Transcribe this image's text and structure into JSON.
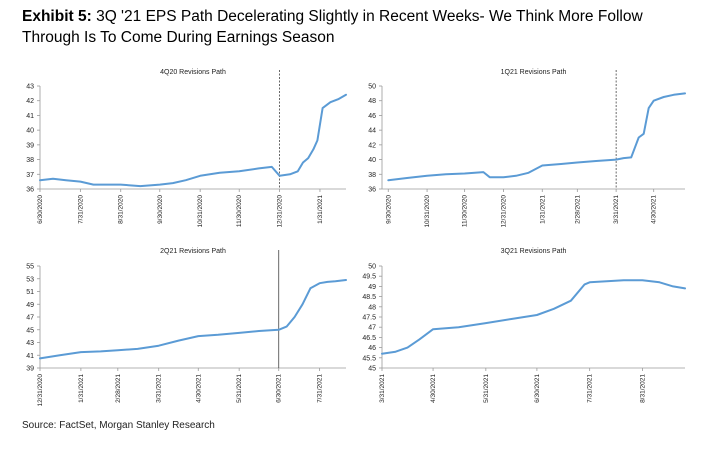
{
  "header": {
    "exhibit_label": "Exhibit 5:",
    "title": "3Q '21 EPS Path Decelerating Slightly in Recent Weeks- We Think More Follow Through Is To Come During Earnings Season"
  },
  "source": "Source: FactSet, Morgan Stanley Research",
  "colors": {
    "series": "#5b9bd5",
    "axis": "#9a9a9a"
  },
  "chart_data": [
    {
      "type": "line",
      "title": "4Q20 Revisions Path",
      "xlabel": "",
      "ylabel": "",
      "ylim": [
        36,
        43
      ],
      "yticks": [
        "36",
        "37",
        "38",
        "39",
        "40",
        "41",
        "42",
        "43"
      ],
      "xticks": [
        "6/30/2020",
        "7/31/2020",
        "8/31/2020",
        "9/30/2020",
        "10/31/2020",
        "11/30/2020",
        "12/31/2020",
        "1/31/2021"
      ],
      "xlim": [
        "2020-06-30",
        "2021-02-20"
      ],
      "vline": "2020-12-31",
      "series": [
        {
          "x": [
            "2020-06-30",
            "2020-07-10",
            "2020-07-20",
            "2020-07-31",
            "2020-08-10",
            "2020-08-31",
            "2020-09-15",
            "2020-09-30",
            "2020-10-10",
            "2020-10-20",
            "2020-10-31",
            "2020-11-15",
            "2020-11-30",
            "2020-12-15",
            "2020-12-25",
            "2020-12-31",
            "2021-01-08",
            "2021-01-14",
            "2021-01-18",
            "2021-01-22",
            "2021-01-26",
            "2021-01-29",
            "2021-02-02",
            "2021-02-08",
            "2021-02-14",
            "2021-02-20"
          ],
          "y": [
            36.6,
            36.7,
            36.6,
            36.5,
            36.3,
            36.3,
            36.2,
            36.3,
            36.4,
            36.6,
            36.9,
            37.1,
            37.2,
            37.4,
            37.5,
            36.9,
            37.0,
            37.2,
            37.8,
            38.1,
            38.7,
            39.3,
            41.5,
            41.9,
            42.1,
            42.4
          ]
        }
      ]
    },
    {
      "type": "line",
      "title": "1Q21 Revisions Path",
      "xlabel": "",
      "ylabel": "",
      "ylim": [
        36,
        50
      ],
      "yticks": [
        "36",
        "38",
        "40",
        "42",
        "44",
        "46",
        "48",
        "50"
      ],
      "xticks": [
        "9/30/2020",
        "10/31/2020",
        "11/30/2020",
        "12/31/2020",
        "1/31/2021",
        "2/28/2021",
        "3/31/2021",
        "4/30/2021"
      ],
      "xlim": [
        "2020-09-25",
        "2021-05-25"
      ],
      "vline": "2021-03-31",
      "series": [
        {
          "x": [
            "2020-09-30",
            "2020-10-15",
            "2020-10-31",
            "2020-11-15",
            "2020-11-30",
            "2020-12-15",
            "2020-12-20",
            "2020-12-31",
            "2021-01-10",
            "2021-01-20",
            "2021-01-31",
            "2021-02-15",
            "2021-02-28",
            "2021-03-15",
            "2021-03-31",
            "2021-04-06",
            "2021-04-12",
            "2021-04-18",
            "2021-04-22",
            "2021-04-26",
            "2021-04-30",
            "2021-05-08",
            "2021-05-16",
            "2021-05-25"
          ],
          "y": [
            37.2,
            37.5,
            37.8,
            38.0,
            38.1,
            38.3,
            37.6,
            37.6,
            37.8,
            38.2,
            39.2,
            39.4,
            39.6,
            39.8,
            40.0,
            40.2,
            40.3,
            43.0,
            43.5,
            47.0,
            48.0,
            48.5,
            48.8,
            49.0
          ]
        }
      ]
    },
    {
      "type": "line",
      "title": "2Q21 Revisions Path",
      "xlabel": "",
      "ylabel": "",
      "ylim": [
        39,
        55
      ],
      "yticks": [
        "39",
        "41",
        "43",
        "45",
        "47",
        "49",
        "51",
        "53",
        "55"
      ],
      "xticks": [
        "12/31/2020",
        "1/31/2021",
        "2/28/2021",
        "3/31/2021",
        "4/30/2021",
        "5/31/2021",
        "6/30/2021",
        "7/31/2021"
      ],
      "xlim": [
        "2020-12-31",
        "2021-08-20"
      ],
      "vline": "2021-06-30",
      "series": [
        {
          "x": [
            "2020-12-31",
            "2021-01-15",
            "2021-01-31",
            "2021-02-15",
            "2021-02-28",
            "2021-03-15",
            "2021-03-31",
            "2021-04-15",
            "2021-04-30",
            "2021-05-15",
            "2021-05-31",
            "2021-06-15",
            "2021-06-30",
            "2021-07-06",
            "2021-07-12",
            "2021-07-18",
            "2021-07-24",
            "2021-07-31",
            "2021-08-06",
            "2021-08-12",
            "2021-08-20"
          ],
          "y": [
            40.5,
            41.0,
            41.5,
            41.6,
            41.8,
            42.0,
            42.5,
            43.3,
            44.0,
            44.2,
            44.5,
            44.8,
            45.0,
            45.5,
            47.0,
            49.0,
            51.5,
            52.3,
            52.5,
            52.6,
            52.8
          ]
        }
      ]
    },
    {
      "type": "line",
      "title": "3Q21 Revisions Path",
      "xlabel": "",
      "ylabel": "",
      "ylim": [
        45,
        50
      ],
      "yticks": [
        "45",
        "45.5",
        "46",
        "46.5",
        "47",
        "47.5",
        "48",
        "48.5",
        "49",
        "49.5",
        "50"
      ],
      "xticks": [
        "3/31/2021",
        "4/30/2021",
        "5/31/2021",
        "6/30/2021",
        "7/31/2021",
        "8/31/2021"
      ],
      "xlim": [
        "2021-03-31",
        "2021-09-25"
      ],
      "series": [
        {
          "x": [
            "2021-03-31",
            "2021-04-08",
            "2021-04-15",
            "2021-04-22",
            "2021-04-30",
            "2021-05-15",
            "2021-05-31",
            "2021-06-15",
            "2021-06-30",
            "2021-07-10",
            "2021-07-20",
            "2021-07-28",
            "2021-07-31",
            "2021-08-10",
            "2021-08-20",
            "2021-08-31",
            "2021-09-10",
            "2021-09-18",
            "2021-09-25"
          ],
          "y": [
            45.7,
            45.8,
            46.0,
            46.4,
            46.9,
            47.0,
            47.2,
            47.4,
            47.6,
            47.9,
            48.3,
            49.1,
            49.2,
            49.25,
            49.3,
            49.3,
            49.2,
            49.0,
            48.9
          ]
        }
      ]
    }
  ]
}
